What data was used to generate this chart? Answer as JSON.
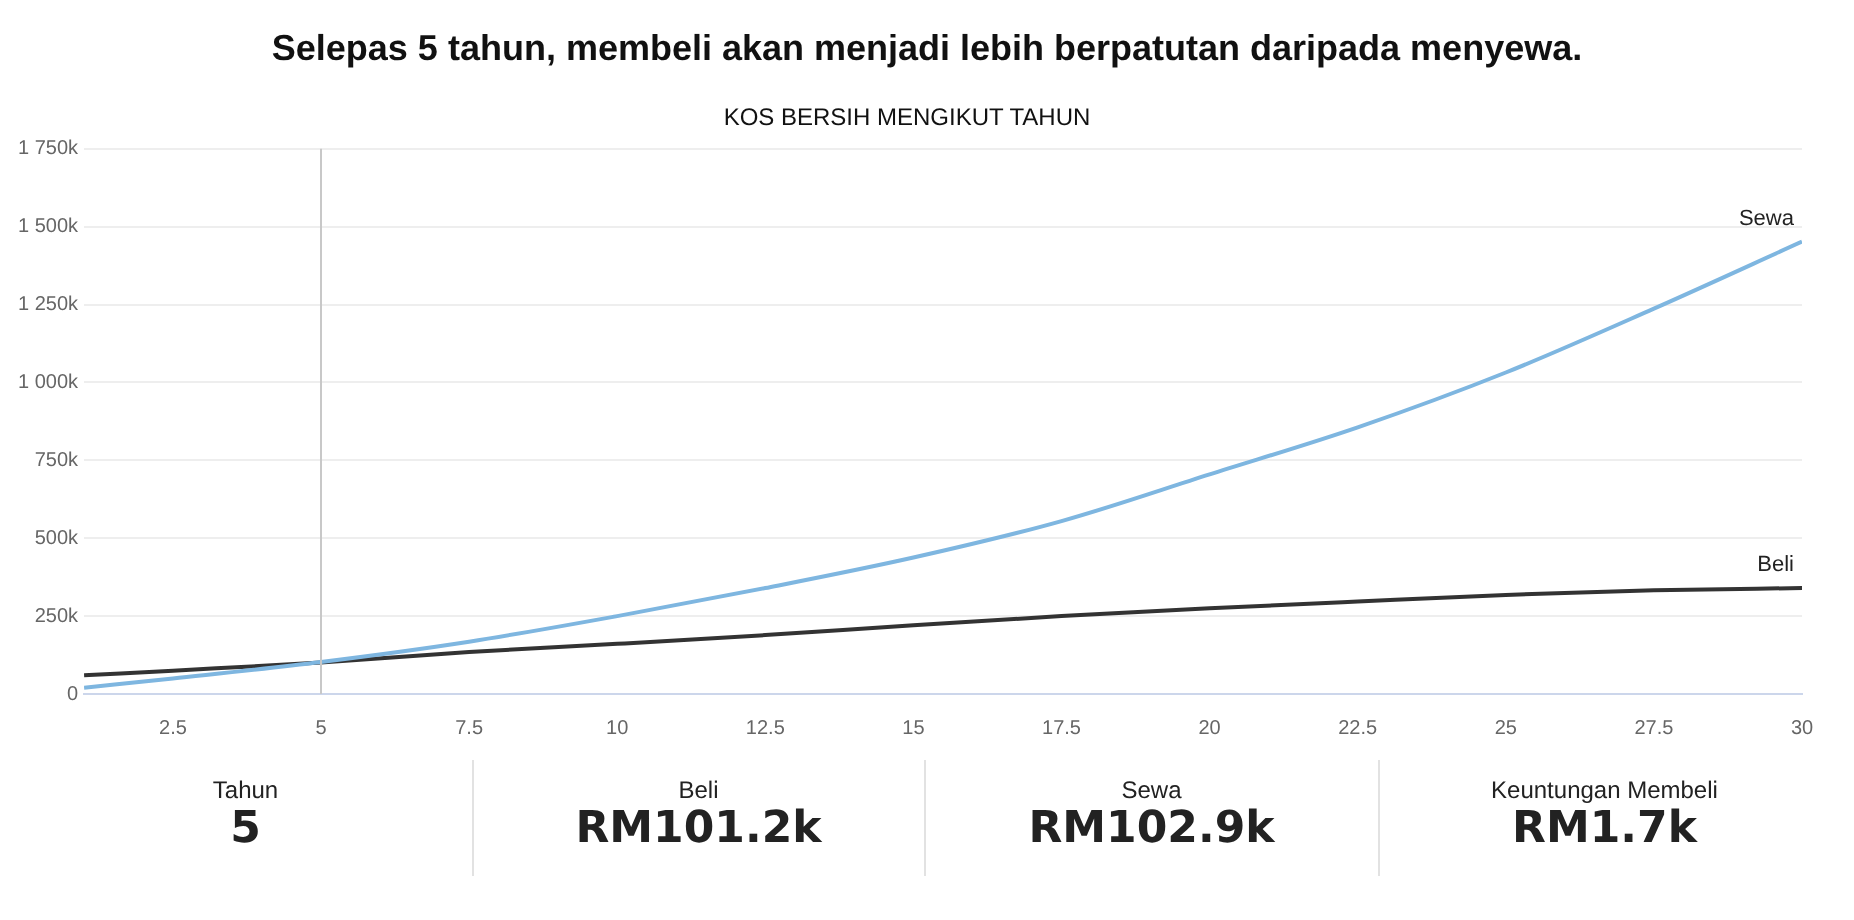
{
  "chart_data": {
    "type": "line",
    "title": "Selepas 5 tahun, membeli akan menjadi lebih berpatutan daripada menyewa.",
    "subtitle": "KOS BERSIH MENGIKUT TAHUN",
    "x": [
      1,
      2.5,
      5,
      7.5,
      10,
      12.5,
      15,
      17.5,
      20,
      22.5,
      25,
      27.5,
      30
    ],
    "series": [
      {
        "name": "Sewa",
        "color": "#7eb6e0",
        "values": [
          20,
          50,
          103,
          168,
          250,
          340,
          438,
          555,
          705,
          856,
          1032,
          1237,
          1452
        ]
      },
      {
        "name": "Beli",
        "color": "#333333",
        "values": [
          60,
          75,
          101,
          135,
          161,
          189,
          221,
          250,
          275,
          297,
          318,
          333,
          340
        ]
      }
    ],
    "xlim": [
      1,
      30
    ],
    "xticks": [
      2.5,
      5,
      7.5,
      10,
      12.5,
      15,
      17.5,
      20,
      22.5,
      25,
      27.5,
      30
    ],
    "ylim": [
      0,
      1750
    ],
    "yticks": [
      0,
      {
        "value": 250,
        "label": "250k"
      },
      {
        "value": 500,
        "label": "500k"
      },
      {
        "value": 750,
        "label": "750k"
      },
      {
        "value": 1000,
        "label": "1 000k"
      },
      {
        "value": 1250,
        "label": "1 250k"
      },
      {
        "value": 1500,
        "label": "1 500k"
      },
      {
        "value": 1750,
        "label": "1 750k"
      }
    ],
    "ref_lines": [
      {
        "axis": "x",
        "value": 5,
        "color": "#c8c8c8"
      }
    ],
    "grid": "y",
    "legend": false,
    "marker": "none",
    "line_style": "solid",
    "annotations": [
      "Tahun",
      "5",
      "Beli",
      "RM101.2k",
      "Sewa",
      "RM102.9k",
      "Keuntungan Membeli",
      "RM1.7k"
    ]
  }
}
